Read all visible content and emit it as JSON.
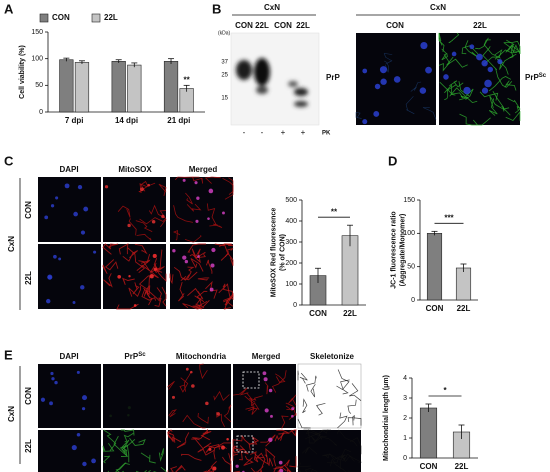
{
  "figure": {
    "panel_labels": [
      "A",
      "B",
      "C",
      "D",
      "E"
    ],
    "blot": {
      "group": "CxN",
      "lanes": [
        "CON",
        "22L",
        "CON",
        "22L"
      ],
      "unit": "(kDa)",
      "markers": [
        "37",
        "25",
        "15"
      ],
      "protein": "PrP",
      "pk_signs": [
        "-",
        "-",
        "+",
        "+"
      ],
      "pk": "PK"
    },
    "if_b": {
      "group": "CxN",
      "columns": [
        "CON",
        "22L"
      ],
      "protein": "PrP",
      "protein_sup": "Sc"
    },
    "c_images": {
      "columns": [
        "DAPI",
        "MitoSOX",
        "Merged"
      ],
      "group": "CxN",
      "rows": [
        "CON",
        "22L"
      ]
    },
    "e_images": {
      "columns": [
        "DAPI",
        "PrP",
        "Mitochondria",
        "Merged",
        "Skeletonize"
      ],
      "column_sup": "Sc",
      "group": "CxN",
      "rows": [
        "CON",
        "22L"
      ]
    }
  },
  "chart_data": [
    {
      "type": "bar",
      "ylabel": [
        "Cell viability (%)"
      ],
      "categories": [
        "7 dpi",
        "14 dpi",
        "21 dpi"
      ],
      "series": [
        {
          "name": "CON",
          "color": "#7f7f7f",
          "values": [
            98,
            95,
            95
          ],
          "errors": [
            3,
            3,
            5
          ]
        },
        {
          "name": "22L",
          "color": "#c4c4c4",
          "values": [
            93,
            88,
            44
          ],
          "errors": [
            3,
            4,
            6
          ]
        }
      ],
      "ylim": [
        0,
        150
      ],
      "yticks": [
        0,
        50,
        100,
        150
      ],
      "significance": "**",
      "legend": "top"
    },
    {
      "type": "bar",
      "ylabel": [
        "MitoSOX Red fluorescence",
        "(% of CON)"
      ],
      "categories": [
        "CON",
        "22L"
      ],
      "values": [
        140,
        330
      ],
      "errors": [
        35,
        50
      ],
      "colors": [
        "#7f7f7f",
        "#c4c4c4"
      ],
      "ylim": [
        0,
        500
      ],
      "yticks": [
        0,
        100,
        200,
        300,
        400,
        500
      ],
      "significance": "**"
    },
    {
      "type": "bar",
      "ylabel": [
        "JC-1 fluorescence ratio",
        "(Aggregate/Monomer)"
      ],
      "categories": [
        "CON",
        "22L"
      ],
      "values": [
        100,
        48
      ],
      "errors": [
        3,
        6
      ],
      "colors": [
        "#7f7f7f",
        "#c4c4c4"
      ],
      "ylim": [
        0,
        150
      ],
      "yticks": [
        0,
        50,
        100,
        150
      ],
      "significance": "***"
    },
    {
      "type": "bar",
      "ylabel": [
        "Mitochondrial length (μm)"
      ],
      "categories": [
        "CON",
        "22L"
      ],
      "values": [
        2.5,
        1.3
      ],
      "errors": [
        0.2,
        0.35
      ],
      "colors": [
        "#7f7f7f",
        "#c4c4c4"
      ],
      "ylim": [
        0,
        4
      ],
      "yticks": [
        0,
        1,
        2,
        3,
        4
      ],
      "significance": "*"
    }
  ]
}
